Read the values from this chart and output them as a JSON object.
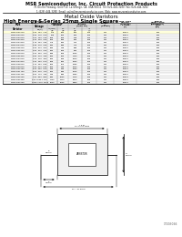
{
  "company_line1": "MSR Semiconductor, Inc. Circuit Protection Products",
  "company_line2": "75 Orville Freeway, Unit P10, La Grange, CA, USA 91011  Tel: 626-444-3280  Fax: 626-444-3282",
  "company_line3": "1-(626)-444-3280  Email: sales@msrsemiconductor.com  Web: www.msrsemiconductor.com",
  "page_title": "Metal Oxide Varistors",
  "table_title": "High Energy S Series 25mm Single Square",
  "col0_header": "MDE\nVaristor",
  "col1_header": "Varistor\nVoltage",
  "col1_sub": "Vn(V)",
  "col2_header": "Maximum\nAllowable\nVoltage",
  "col2_sub1": "AC(rms)\n(V)",
  "col2_sub2": "DC\n(V)",
  "col3_header": "Non-Clamping\nVoltage\n(8/20 μs)",
  "col3_sub1": "Vc\n(V)",
  "col3_sub2": "Ip\n(A)",
  "col4_header": "Max.\nEnergy\n(J)\n(10 ms)",
  "col5_header": "Max. Peak\nCurrent\n(8/20 μs)\n1 time\n(A)",
  "col6_header": "Typical\nCapacitance\n(Reference)\n1kHz\n(pF)",
  "rows": [
    [
      "MDE-25S271K",
      "130  150  175",
      "175",
      "220",
      "454",
      "100",
      "441",
      "10000",
      "250"
    ],
    [
      "MDE-25S301K",
      "150  175  200",
      "195",
      "250",
      "500",
      "100",
      "441",
      "10000",
      "250"
    ],
    [
      "MDE-25S321K",
      "160  185  215",
      "205",
      "265",
      "528",
      "100",
      "441",
      "10000",
      "250"
    ],
    [
      "MDE-25S391K",
      "200  225  260",
      "250",
      "320",
      "650",
      "100",
      "441",
      "10000",
      "250"
    ],
    [
      "MDE-25S431K",
      "215  250  285",
      "275",
      "350",
      "710",
      "100",
      "441",
      "10000",
      "250"
    ],
    [
      "MDE-25S471K",
      "235  275  315",
      "300",
      "385",
      "775",
      "100",
      "441",
      "10000",
      "250"
    ],
    [
      "MDE-25S511K",
      "255  300  340",
      "320",
      "415",
      "845",
      "100",
      "441",
      "10000",
      "250"
    ],
    [
      "MDE-25S561K",
      "280  330  375",
      "350",
      "455",
      "920",
      "100",
      "441",
      "10000",
      "250"
    ],
    [
      "MDE-25S621K",
      "310  360  410",
      "385",
      "505",
      "1025",
      "100",
      "441",
      "10000",
      "250"
    ],
    [
      "MDE-25S681K",
      "340  400  445",
      "420",
      "560",
      "1120",
      "100",
      "441",
      "10000",
      "250"
    ],
    [
      "MDE-25S751K",
      "375  440  490",
      "460",
      "615",
      "1240",
      "100",
      "441",
      "10000",
      "250"
    ],
    [
      "MDE-25S781K",
      "390  455  510",
      "485",
      "640",
      "1290",
      "100",
      "441",
      "10000",
      "250"
    ],
    [
      "MDE-25S821K",
      "410  480  535",
      "510",
      "670",
      "1355",
      "100",
      "441",
      "10000",
      "250"
    ],
    [
      "MDE-25S911K",
      "455  530  595",
      "550",
      "745",
      "1500",
      "100",
      "441",
      "10000",
      "250"
    ],
    [
      "MDE-25S102K",
      "500  585  650",
      "625",
      "825",
      "1650",
      "100",
      "441",
      "10000",
      "250"
    ],
    [
      "MDE-25S112K",
      "550  645  720",
      "680",
      "895",
      "1815",
      "100",
      "441",
      "10000",
      "250"
    ],
    [
      "MDE-25S122K",
      "600  700  785",
      "745",
      "980",
      "1980",
      "100",
      "441",
      "10000",
      "250"
    ],
    [
      "MDE-25S152K",
      "750  880  980",
      "930",
      "1225",
      "2475",
      "100",
      "441",
      "10000",
      "250"
    ],
    [
      "MDE-25S182K",
      "900 1055 1175",
      "1120",
      "1470",
      "2970",
      "100",
      "441",
      "10000",
      "250"
    ],
    [
      "MDE-25S202K",
      "1000 1170 1305",
      "1240",
      "1625",
      "3300",
      "100",
      "441",
      "10000",
      "250"
    ]
  ],
  "highlight_row": 0,
  "bg_color": "#ffffff",
  "doc_number": "17203066"
}
